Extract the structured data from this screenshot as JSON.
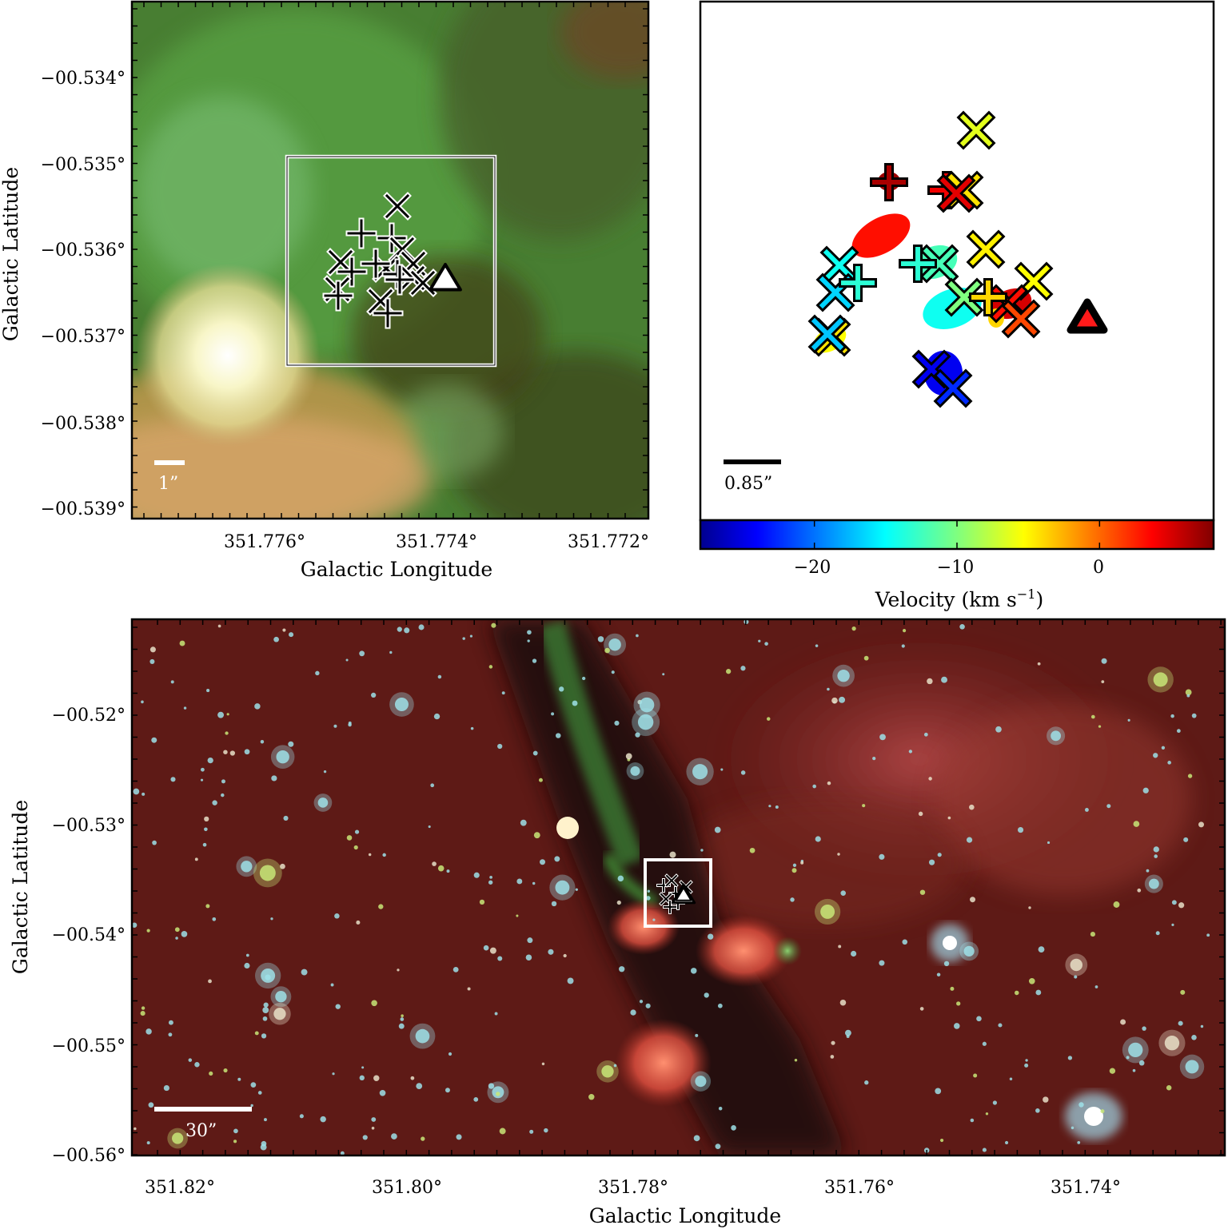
{
  "panel_top_left": {
    "xlabel": "Galactic Longitude",
    "ylabel": "Galactic Latitude",
    "x_ticks": [
      "351.776°",
      "351.774°",
      "351.772°"
    ],
    "y_ticks": [
      "−00.534°",
      "−00.535°",
      "−00.536°",
      "−00.537°",
      "−00.538°",
      "−00.539°"
    ],
    "scale_bar_label": "1”"
  },
  "panel_top_right": {
    "scale_bar_label": "0.85”",
    "colorbar_label": "Velocity (km s",
    "colorbar_label_exp": "−1",
    "colorbar_label_close": ")",
    "colorbar_ticks": [
      "−20",
      "−10",
      "0"
    ],
    "colorbar_tick_values": [
      -20,
      -10,
      0
    ],
    "colorbar_range": [
      -28,
      8
    ],
    "colormap": "jet"
  },
  "panel_bottom": {
    "xlabel": "Galactic Longitude",
    "ylabel": "Galactic Latitude",
    "x_ticks": [
      "351.82°",
      "351.80°",
      "351.78°",
      "351.76°",
      "351.74°"
    ],
    "y_ticks": [
      "−00.52°",
      "−00.53°",
      "−00.54°",
      "−00.55°",
      "−00.56°"
    ],
    "scale_bar_label": "30”"
  },
  "velocity_markers": [
    {
      "symbol": "x",
      "velocity": -6.5
    },
    {
      "symbol": "plus",
      "velocity": 6.5
    },
    {
      "symbol": "plus",
      "velocity": 4.0
    },
    {
      "symbol": "x",
      "velocity": -4.5
    },
    {
      "symbol": "x",
      "velocity": 4.5
    },
    {
      "symbol": "x",
      "velocity": -5.0
    },
    {
      "symbol": "x",
      "velocity": -14.0
    },
    {
      "symbol": "x",
      "velocity": -16.0
    },
    {
      "symbol": "plus",
      "velocity": -13.0
    },
    {
      "symbol": "x",
      "velocity": -5.5
    },
    {
      "symbol": "x",
      "velocity": -12.0
    },
    {
      "symbol": "x",
      "velocity": -10.0
    },
    {
      "symbol": "plus",
      "velocity": -13.0
    },
    {
      "symbol": "x",
      "velocity": 3.0
    },
    {
      "symbol": "x",
      "velocity": 1.0
    },
    {
      "symbol": "plus",
      "velocity": -4.0
    },
    {
      "symbol": "x",
      "velocity": -4.5
    },
    {
      "symbol": "x",
      "velocity": -16.5
    },
    {
      "symbol": "x",
      "velocity": -24.0
    },
    {
      "symbol": "x",
      "velocity": -22.0
    },
    {
      "symbol": "triangle",
      "velocity": 5.0
    }
  ]
}
